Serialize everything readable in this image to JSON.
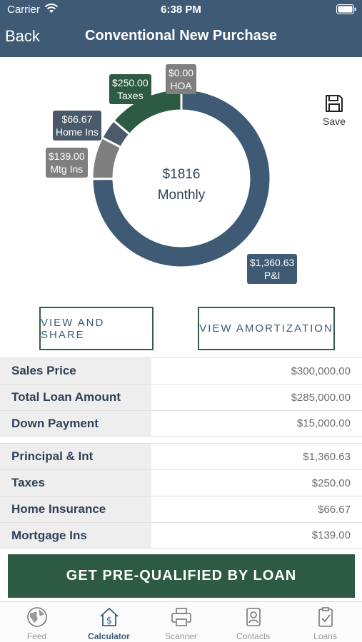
{
  "status_bar": {
    "carrier": "Carrier",
    "time": "6:38 PM"
  },
  "nav": {
    "back_label": "Back",
    "title": "Conventional New Purchase"
  },
  "chart_data": {
    "type": "pie",
    "center_amount": "$1816",
    "center_label": "Monthly",
    "slices": [
      {
        "label": "P&I",
        "display_value": "$1,360.63",
        "value": 1360.63,
        "color": "#3e5a75"
      },
      {
        "label": "Mtg Ins",
        "display_value": "$139.00",
        "value": 139.0,
        "color": "#7f7f7f"
      },
      {
        "label": "Home Ins",
        "display_value": "$66.67",
        "value": 66.67,
        "color": "#4a5a6a"
      },
      {
        "label": "Taxes",
        "display_value": "$250.00",
        "value": 250.0,
        "color": "#2c5a42"
      },
      {
        "label": "HOA",
        "display_value": "$0.00",
        "value": 0.0,
        "color": "#7f7f7f"
      }
    ]
  },
  "save": {
    "label": "Save",
    "icon": "floppy-disk-icon"
  },
  "buttons": {
    "view_share": "VIEW AND SHARE",
    "view_amortization": "VIEW AMORTIZATION"
  },
  "loan_rows": [
    {
      "label": "Sales Price",
      "value": "$300,000.00"
    },
    {
      "label": "Total Loan Amount",
      "value": "$285,000.00"
    },
    {
      "label": "Down Payment",
      "value": "$15,000.00"
    }
  ],
  "payment_rows": [
    {
      "label": "Principal & Int",
      "value": "$1,360.63"
    },
    {
      "label": "Taxes",
      "value": "$250.00"
    },
    {
      "label": "Home Insurance",
      "value": "$66.67"
    },
    {
      "label": "Mortgage Ins",
      "value": "$139.00"
    }
  ],
  "cta": {
    "label": "GET PRE-QUALIFIED BY LOAN"
  },
  "tabs": [
    {
      "label": "Feed",
      "icon": "globe-icon"
    },
    {
      "label": "Calculator",
      "icon": "calculator-house-icon"
    },
    {
      "label": "Scanner",
      "icon": "printer-icon"
    },
    {
      "label": "Contacts",
      "icon": "contacts-icon"
    },
    {
      "label": "Loans",
      "icon": "clipboard-check-icon"
    }
  ],
  "colors": {
    "header": "#3e5a75",
    "accent_green": "#2c5a42"
  }
}
